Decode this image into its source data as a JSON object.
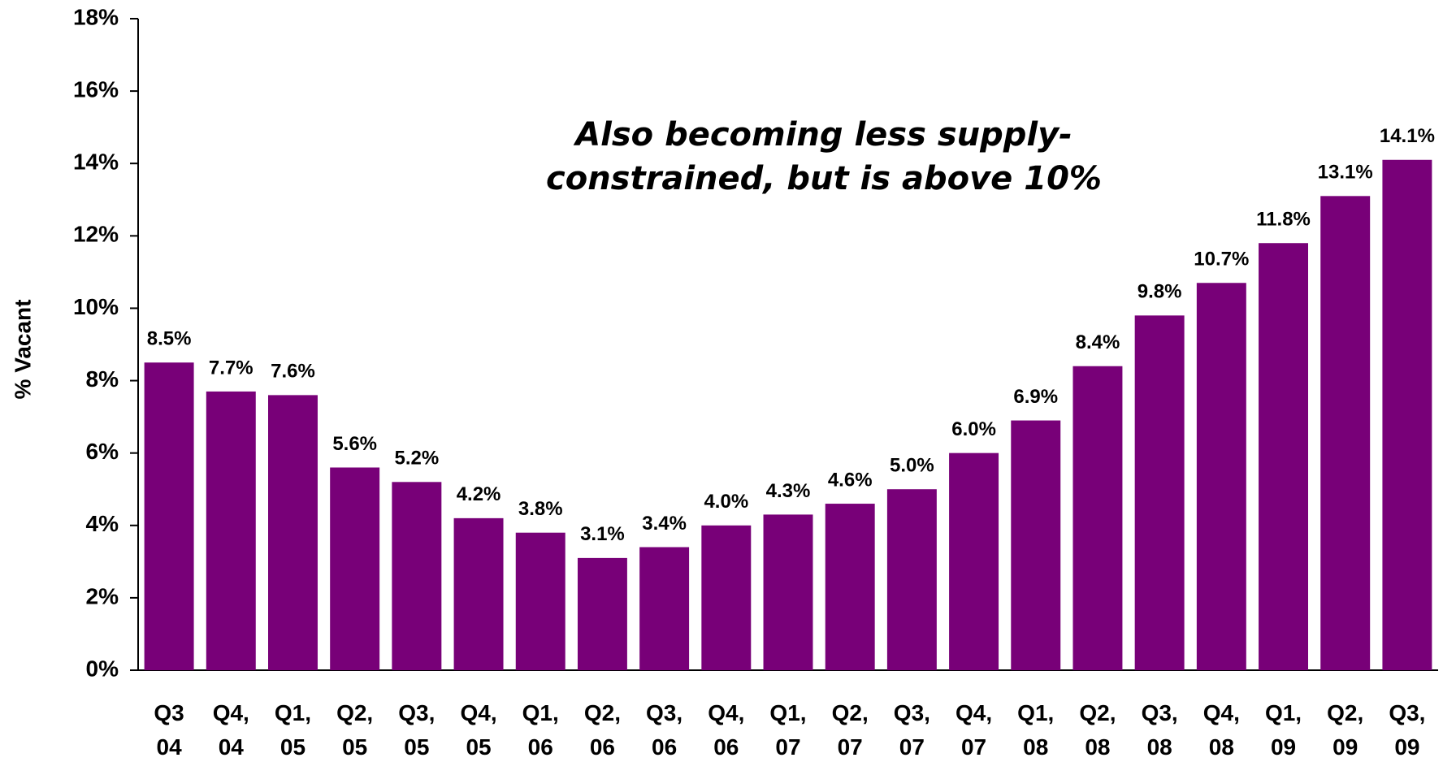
{
  "chart_data": {
    "type": "bar",
    "y_label": "% Vacant",
    "annotation": [
      "Also becoming less supply-",
      "constrained, but is above 10%"
    ],
    "categories": [
      "Q3\n04",
      "Q4,\n04",
      "Q1,\n05",
      "Q2,\n05",
      "Q3,\n05",
      "Q4,\n05",
      "Q1,\n06",
      "Q2,\n06",
      "Q3,\n06",
      "Q4,\n06",
      "Q1,\n07",
      "Q2,\n07",
      "Q3,\n07",
      "Q4,\n07",
      "Q1,\n08",
      "Q2,\n08",
      "Q3,\n08",
      "Q4,\n08",
      "Q1,\n09",
      "Q2,\n09",
      "Q3,\n09"
    ],
    "values": [
      8.5,
      7.7,
      7.6,
      5.6,
      5.2,
      4.2,
      3.8,
      3.1,
      3.4,
      4.0,
      4.3,
      4.6,
      5.0,
      6.0,
      6.9,
      8.4,
      9.8,
      10.7,
      11.8,
      13.1,
      14.1
    ],
    "value_labels": [
      "8.5%",
      "7.7%",
      "7.6%",
      "5.6%",
      "5.2%",
      "4.2%",
      "3.8%",
      "3.1%",
      "3.4%",
      "4.0%",
      "4.3%",
      "4.6%",
      "5.0%",
      "6.0%",
      "6.9%",
      "8.4%",
      "9.8%",
      "10.7%",
      "11.8%",
      "13.1%",
      "14.1%"
    ],
    "color": "#780078",
    "ylim": [
      0,
      18
    ],
    "yticks": [
      {
        "value": 0,
        "label": "0%"
      },
      {
        "value": 2,
        "label": "2%"
      },
      {
        "value": 4,
        "label": "4%"
      },
      {
        "value": 6,
        "label": "6%"
      },
      {
        "value": 8,
        "label": "8%"
      },
      {
        "value": 10,
        "label": "10%"
      },
      {
        "value": 12,
        "label": "12%"
      },
      {
        "value": 14,
        "label": "14%"
      },
      {
        "value": 16,
        "label": "16%"
      },
      {
        "value": 18,
        "label": "18%"
      }
    ]
  }
}
